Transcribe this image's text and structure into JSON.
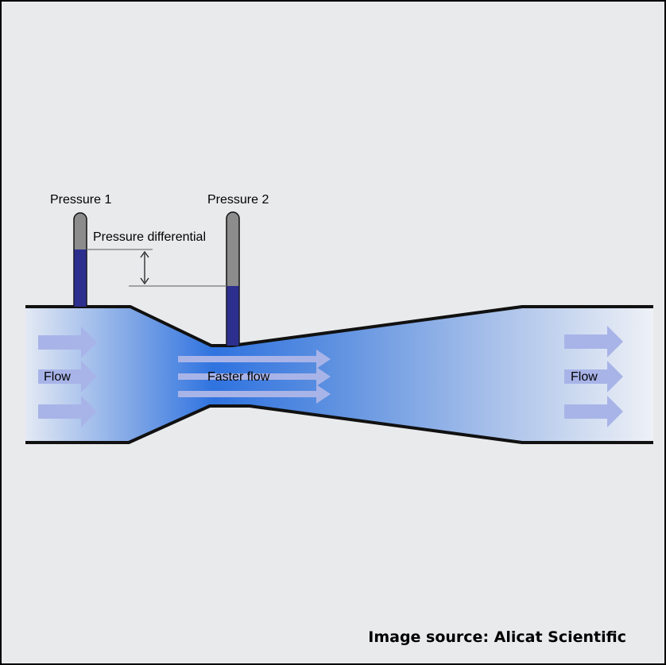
{
  "labels": {
    "pressure_1": "Pressure 1",
    "pressure_2": "Pressure 2",
    "pressure_differential": "Pressure differential",
    "flow_left": "Flow",
    "faster_flow": "Faster flow",
    "flow_right": "Flow"
  },
  "source_caption": "Image source: Alicat Scientific",
  "colors": {
    "background": "#e9eaec",
    "fluid_dark": "#2f73e0",
    "fluid_light": "#e3e9f4",
    "arrow": "#a8b4e8",
    "manometer_fluid": "#2d2f8e",
    "manometer_tube": "#8c8c8c",
    "pipe_wall": "#111111"
  },
  "icons": [
    "flow-arrow-icon",
    "double-headed-arrow-icon"
  ]
}
